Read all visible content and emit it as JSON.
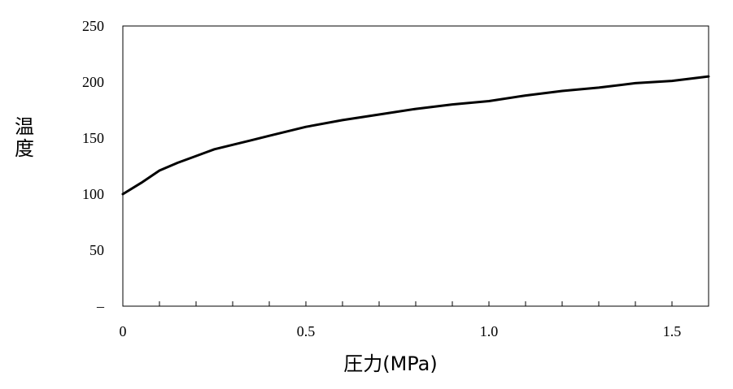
{
  "chart_data": {
    "type": "line",
    "title": "",
    "xlabel": "圧力(MPa)",
    "ylabel": "温度",
    "xlim": [
      0,
      1.6
    ],
    "ylim": [
      0,
      250
    ],
    "x_ticks": [
      0,
      0.1,
      0.2,
      0.3,
      0.4,
      0.5,
      0.6,
      0.7,
      0.8,
      0.9,
      1.0,
      1.1,
      1.2,
      1.3,
      1.4,
      1.5,
      1.6
    ],
    "x_tick_labels": [
      {
        "value": 0,
        "label": "0"
      },
      {
        "value": 0.5,
        "label": "0.5"
      },
      {
        "value": 1.0,
        "label": "1.0"
      },
      {
        "value": 1.5,
        "label": "1.5"
      }
    ],
    "y_tick_labels": [
      {
        "value": 0,
        "label": "–"
      },
      {
        "value": 50,
        "label": "50"
      },
      {
        "value": 100,
        "label": "100"
      },
      {
        "value": 150,
        "label": "150"
      },
      {
        "value": 200,
        "label": "200"
      },
      {
        "value": 250,
        "label": "250"
      }
    ],
    "grid": false,
    "legend": "none",
    "line_color": "#000000",
    "series": [
      {
        "x": [
          0,
          0.05,
          0.1,
          0.15,
          0.2,
          0.25,
          0.3,
          0.35,
          0.4,
          0.5,
          0.6,
          0.7,
          0.8,
          0.9,
          1.0,
          1.1,
          1.2,
          1.3,
          1.4,
          1.5,
          1.6
        ],
        "values": [
          100,
          110,
          121,
          128,
          134,
          140,
          144,
          148,
          152,
          160,
          166,
          171,
          176,
          180,
          183,
          188,
          192,
          195,
          199,
          201,
          205
        ]
      }
    ]
  }
}
